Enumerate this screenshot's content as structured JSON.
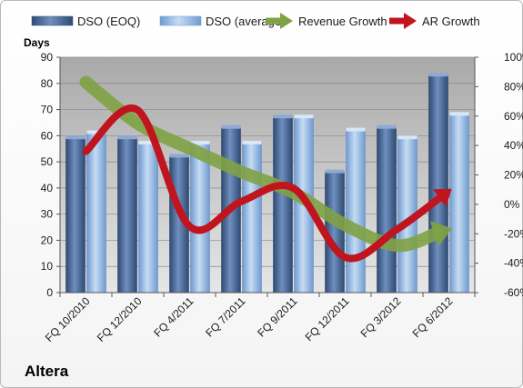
{
  "company": "Altera",
  "chart_data": {
    "type": "bar",
    "ylabel": "Days",
    "ylim": [
      0,
      90
    ],
    "y2lim": [
      -60,
      100
    ],
    "y_ticks": [
      "0",
      "10",
      "20",
      "30",
      "40",
      "50",
      "60",
      "70",
      "80",
      "90"
    ],
    "y2_ticks": [
      "-60%",
      "-40%",
      "-20%",
      "0%",
      "20%",
      "40%",
      "60%",
      "80%",
      "100%"
    ],
    "grid": true,
    "legend_position": "top",
    "categories": [
      "FQ 10/2010",
      "FQ 12/2010",
      "FQ 4/2011",
      "FQ 7/2011",
      "FQ 9/2011",
      "FQ 12/2011",
      "FQ 3/2012",
      "FQ 6/2012"
    ],
    "series": [
      {
        "name": "DSO (EOQ)",
        "kind": "bar",
        "axis": "left",
        "color": "#4f6d98",
        "values": [
          59,
          59,
          52,
          63,
          67,
          46,
          63,
          83
        ]
      },
      {
        "name": "DSO (average)",
        "kind": "bar",
        "axis": "left",
        "color": "#8db2dc",
        "values": [
          61,
          57,
          57,
          57,
          67,
          62,
          59,
          68
        ]
      },
      {
        "name": "Revenue Growth",
        "kind": "arrow-line",
        "axis": "right",
        "color": "#7fa244",
        "values": [
          83,
          55,
          38,
          22,
          8,
          -14,
          -28,
          -17
        ]
      },
      {
        "name": "AR Growth",
        "kind": "arrow-line",
        "axis": "right",
        "color": "#c0141e",
        "values": [
          36,
          64,
          -15,
          2,
          11,
          -36,
          -17,
          9
        ]
      }
    ]
  }
}
